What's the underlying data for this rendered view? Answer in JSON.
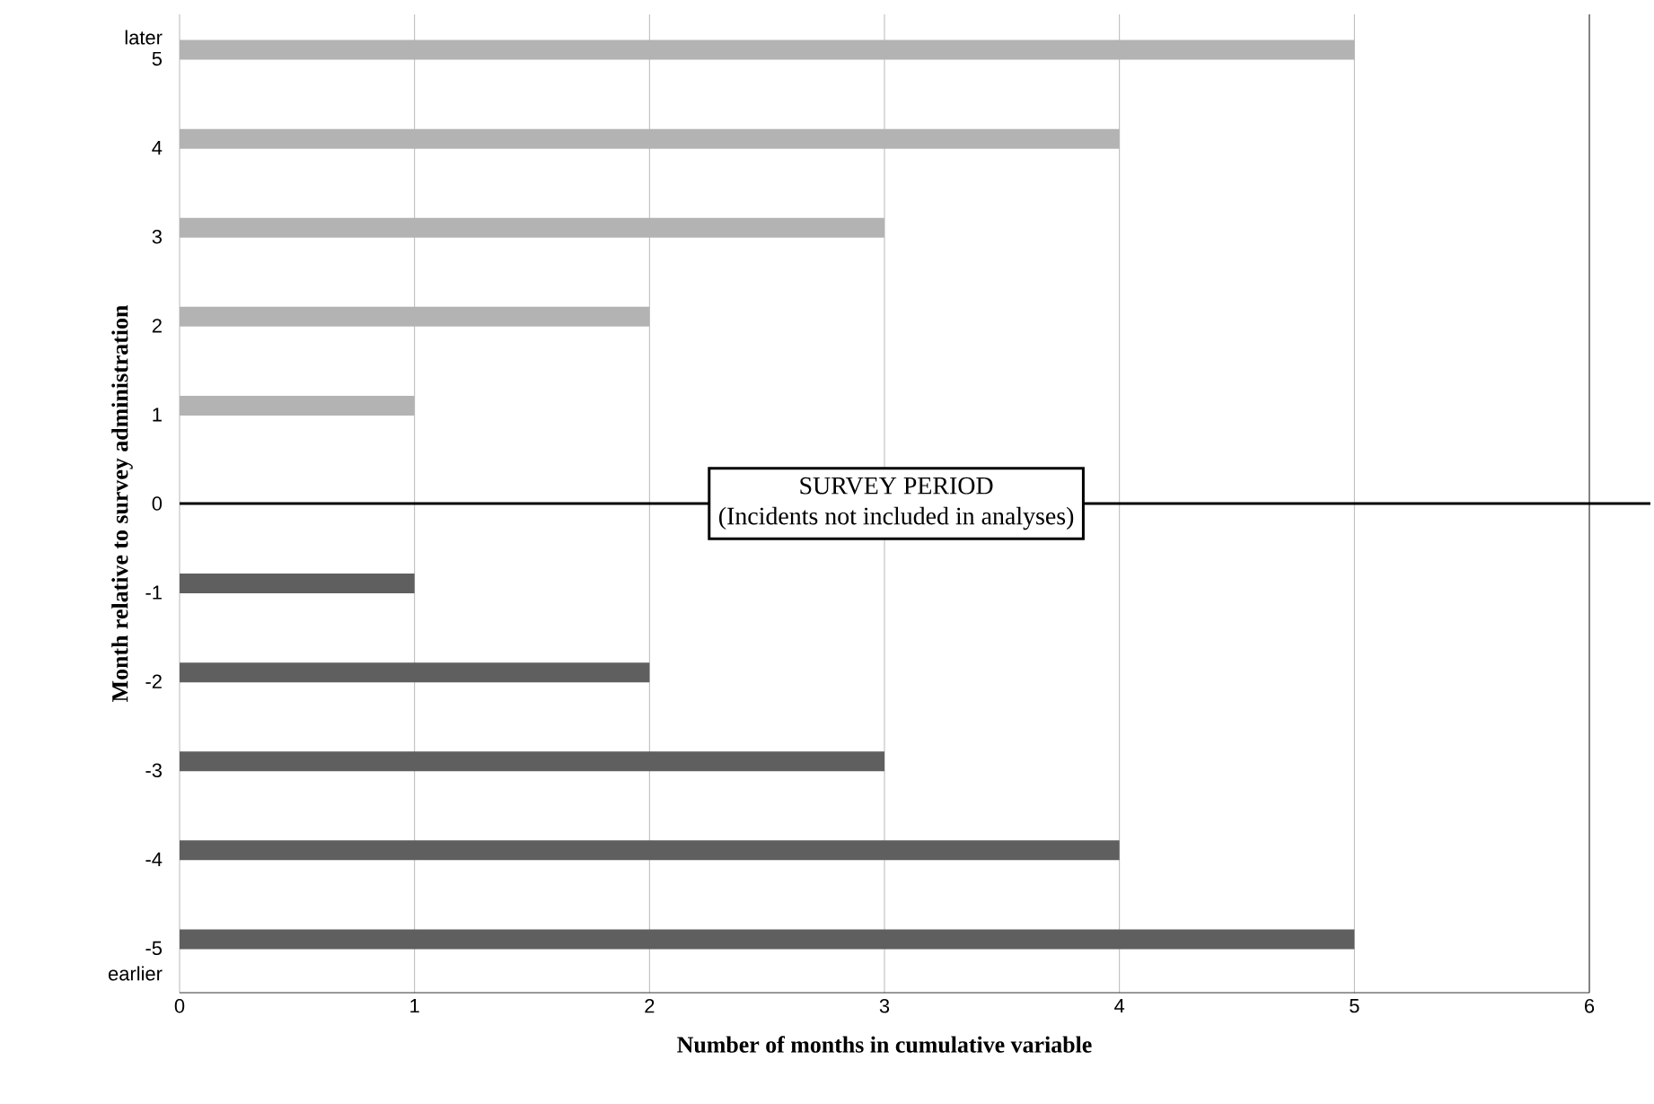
{
  "chart_data": {
    "type": "bar",
    "orientation": "horizontal",
    "xlabel": "Number of months in cumulative variable",
    "ylabel": "Month relative to survey administration",
    "categories": [
      "5",
      "4",
      "3",
      "2",
      "1",
      "0",
      "-1",
      "-2",
      "-3",
      "-4",
      "-5"
    ],
    "values": [
      5,
      4,
      3,
      2,
      1,
      null,
      1,
      2,
      3,
      4,
      5
    ],
    "colors": [
      "#b3b3b3",
      "#b3b3b3",
      "#b3b3b3",
      "#b3b3b3",
      "#b3b3b3",
      "#b3b3b3",
      "#5f5f5f",
      "#5f5f5f",
      "#5f5f5f",
      "#5f5f5f",
      "#5f5f5f"
    ],
    "xlim": [
      0,
      6
    ],
    "xticks": [
      0,
      1,
      2,
      3,
      4,
      5,
      6
    ],
    "grid": "x",
    "ref_lines": [
      {
        "axis": "y",
        "value": "0",
        "label": "SURVEY PERIOD",
        "color": "#000000"
      }
    ],
    "annotations": [
      "(Incidents not included in analyses)",
      "later",
      "earlier"
    ]
  }
}
